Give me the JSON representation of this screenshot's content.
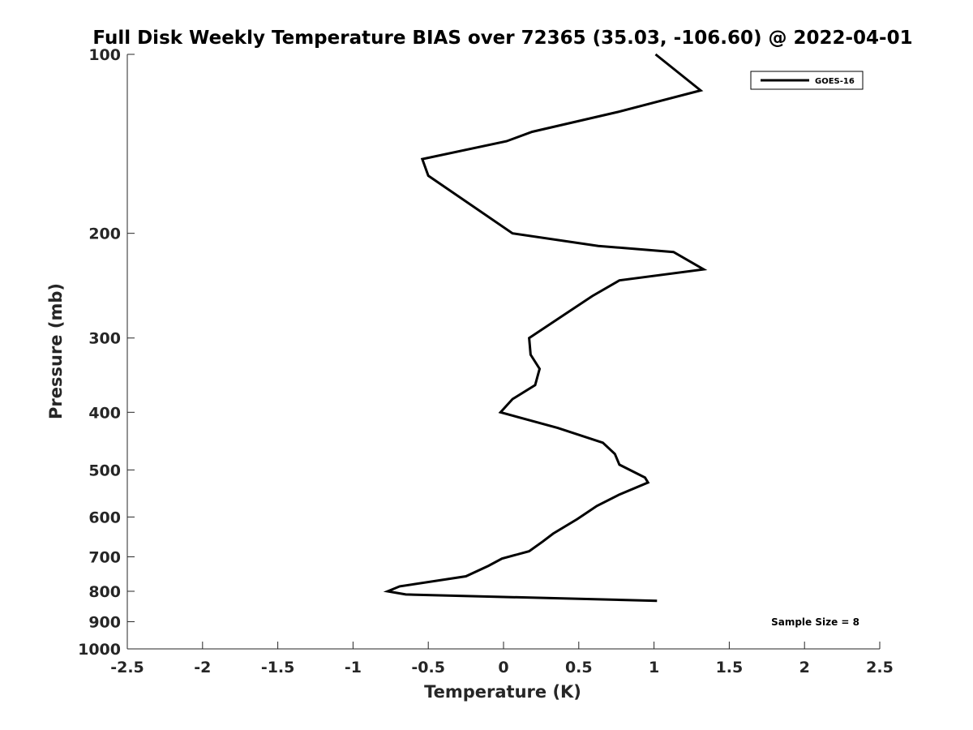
{
  "chart_data": {
    "type": "line",
    "title": "Full Disk Weekly Temperature BIAS over 72365 (35.03, -106.60) @ 2022-04-01",
    "xlabel": "Temperature (K)",
    "ylabel": "Pressure (mb)",
    "xlim": [
      -2.5,
      2.5
    ],
    "ylim": [
      100,
      1000
    ],
    "y_scale": "log",
    "y_reversed": true,
    "x_ticks": [
      -2.5,
      -2,
      -1.5,
      -1,
      -0.5,
      0,
      0.5,
      1,
      1.5,
      2,
      2.5
    ],
    "x_tick_labels": [
      "-2.5",
      "-2",
      "-1.5",
      "-1",
      "-0.5",
      "0",
      "0.5",
      "1",
      "1.5",
      "2",
      "2.5"
    ],
    "y_ticks": [
      100,
      200,
      300,
      400,
      500,
      600,
      700,
      800,
      900,
      1000
    ],
    "y_tick_labels": [
      "100",
      "200",
      "300",
      "400",
      "500",
      "600",
      "700",
      "800",
      "900",
      "1000"
    ],
    "grid": false,
    "legend_position": "top-right",
    "series": [
      {
        "name": "GOES-16",
        "color": "#000000",
        "x": [
          1.01,
          1.31,
          0.76,
          0.19,
          0.02,
          -0.54,
          -0.5,
          0.06,
          0.63,
          1.13,
          1.33,
          0.77,
          0.59,
          0.17,
          0.18,
          0.24,
          0.21,
          0.06,
          -0.02,
          0.36,
          0.66,
          0.74,
          0.77,
          0.94,
          0.96,
          0.77,
          0.62,
          0.49,
          0.33,
          0.26,
          0.17,
          -0.01,
          -0.1,
          -0.25,
          -0.69,
          -0.77,
          -0.65,
          1.02
        ],
        "y": [
          100,
          115,
          125,
          135,
          140,
          150,
          160,
          200,
          210,
          215,
          230,
          240,
          255,
          300,
          320,
          338,
          360,
          380,
          400,
          425,
          450,
          470,
          490,
          515,
          525,
          550,
          575,
          605,
          640,
          660,
          685,
          705,
          725,
          755,
          785,
          800,
          810,
          830
        ]
      }
    ],
    "annotations": [
      {
        "text": "Sample Size = 8"
      }
    ]
  }
}
